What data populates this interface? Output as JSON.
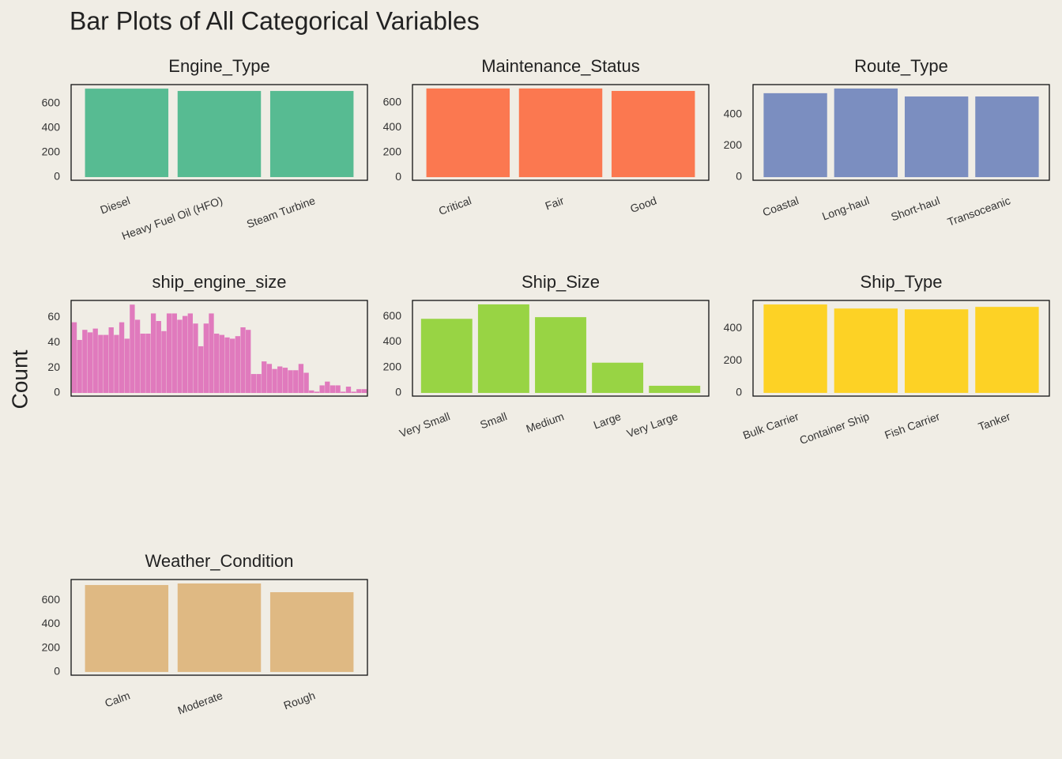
{
  "title": "Bar Plots of All Categorical Variables",
  "ylabel": "Count",
  "chart_data": [
    {
      "type": "bar",
      "title": "Engine_Type",
      "categories": [
        "Diesel",
        "Heavy Fuel Oil (HFO)",
        "Steam Turbine"
      ],
      "values": [
        722,
        703,
        703
      ],
      "color": "#57bb92",
      "ylim": [
        -26,
        755
      ],
      "yticks": [
        0,
        200,
        400,
        600
      ]
    },
    {
      "type": "bar",
      "title": "Maintenance_Status",
      "categories": [
        "Critical",
        "Fair",
        "Good"
      ],
      "values": [
        714,
        714,
        694
      ],
      "color": "#fb7850",
      "ylim": [
        -25,
        745
      ],
      "yticks": [
        0,
        200,
        400,
        600
      ]
    },
    {
      "type": "bar",
      "title": "Route_Type",
      "categories": [
        "Coastal",
        "Long-haul",
        "Short-haul",
        "Transoceanic"
      ],
      "values": [
        537,
        567,
        516,
        516
      ],
      "color": "#7b8ec0",
      "ylim": [
        -20,
        592
      ],
      "yticks": [
        0,
        200,
        400
      ]
    },
    {
      "type": "bar",
      "title": "ship_engine_size",
      "categories": [
        null,
        null,
        null,
        null,
        null,
        null,
        null,
        null,
        null,
        null,
        null,
        null,
        null,
        null,
        null,
        null,
        null,
        null,
        null,
        null,
        null,
        null,
        null,
        null,
        null,
        null,
        null,
        null,
        null,
        null,
        null,
        null,
        null,
        null,
        null,
        null,
        null,
        null,
        null,
        null,
        null,
        null,
        null,
        null,
        null,
        null,
        null,
        null,
        null,
        null,
        null,
        null,
        null,
        null,
        null,
        null
      ],
      "values": [
        56,
        42,
        50,
        48,
        51,
        46,
        46,
        52,
        46,
        56,
        43,
        70,
        58,
        47,
        47,
        63,
        57,
        49,
        63,
        63,
        58,
        61,
        63,
        55,
        37,
        55,
        63,
        47,
        46,
        44,
        43,
        45,
        52,
        50,
        15,
        15,
        25,
        23,
        19,
        21,
        20,
        18,
        18,
        23,
        16,
        2,
        1,
        6,
        9,
        6,
        6,
        1,
        5,
        1,
        3,
        3
      ],
      "color": "#e07abd",
      "ylim": [
        -2.5,
        73.3
      ],
      "yticks": [
        0,
        20,
        40,
        60
      ]
    },
    {
      "type": "bar",
      "title": "Ship_Size",
      "categories": [
        "Very Small",
        "Small",
        "Medium",
        "Large",
        "Very Large"
      ],
      "values": [
        581,
        694,
        594,
        237,
        56
      ],
      "color": "#98d444",
      "ylim": [
        -25,
        725
      ],
      "yticks": [
        0,
        200,
        400,
        600
      ]
    },
    {
      "type": "bar",
      "title": "Ship_Type",
      "categories": [
        "Bulk Carrier",
        "Container Ship",
        "Fish Carrier",
        "Tanker"
      ],
      "values": [
        548,
        523,
        518,
        533
      ],
      "color": "#fdd225",
      "ylim": [
        -20,
        573
      ],
      "yticks": [
        0,
        200,
        400
      ]
    },
    {
      "type": "bar",
      "title": "Weather_Condition",
      "categories": [
        "Calm",
        "Moderate",
        "Rough"
      ],
      "values": [
        727,
        740,
        667
      ],
      "color": "#dfb983",
      "ylim": [
        -27,
        773
      ],
      "yticks": [
        0,
        200,
        400,
        600
      ]
    }
  ]
}
